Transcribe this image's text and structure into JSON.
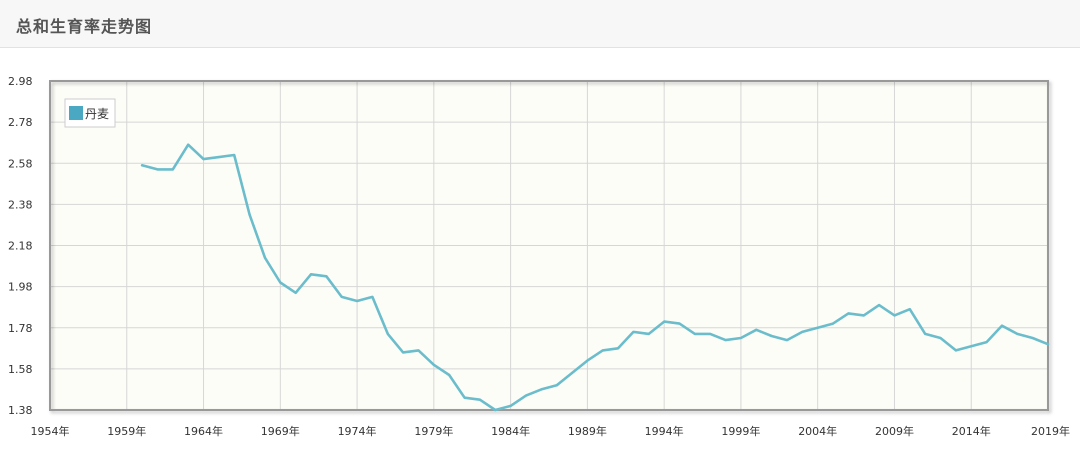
{
  "panel": {
    "title": "总和生育率走势图"
  },
  "colors": {
    "series": "#6bbdcc",
    "legend_swatch": "#4aa8c2",
    "grid": "#d6d6d6",
    "frame": "#999999",
    "plot_bg": "#fdfdf8"
  },
  "chart_data": {
    "type": "line",
    "title": "总和生育率走势图",
    "xlabel": "",
    "ylabel": "",
    "xlim": [
      1954,
      2019
    ],
    "ylim": [
      1.38,
      2.98
    ],
    "grid": true,
    "legend": "top-left",
    "x_ticks": [
      {
        "value": 1954,
        "label": "1954年"
      },
      {
        "value": 1959,
        "label": "1959年"
      },
      {
        "value": 1964,
        "label": "1964年"
      },
      {
        "value": 1969,
        "label": "1969年"
      },
      {
        "value": 1974,
        "label": "1974年"
      },
      {
        "value": 1979,
        "label": "1979年"
      },
      {
        "value": 1984,
        "label": "1984年"
      },
      {
        "value": 1989,
        "label": "1989年"
      },
      {
        "value": 1994,
        "label": "1994年"
      },
      {
        "value": 1999,
        "label": "1999年"
      },
      {
        "value": 2004,
        "label": "2004年"
      },
      {
        "value": 2009,
        "label": "2009年"
      },
      {
        "value": 2014,
        "label": "2014年"
      },
      {
        "value": 2019,
        "label": "2019年"
      }
    ],
    "y_ticks": [
      {
        "value": 2.98,
        "label": "2.98"
      },
      {
        "value": 2.78,
        "label": "2.78"
      },
      {
        "value": 2.58,
        "label": "2.58"
      },
      {
        "value": 2.38,
        "label": "2.38"
      },
      {
        "value": 2.18,
        "label": "2.18"
      },
      {
        "value": 1.98,
        "label": "1.98"
      },
      {
        "value": 1.78,
        "label": "1.78"
      },
      {
        "value": 1.58,
        "label": "1.58"
      },
      {
        "value": 1.38,
        "label": "1.38"
      }
    ],
    "series": [
      {
        "name": "丹麦",
        "x": [
          1960,
          1961,
          1962,
          1963,
          1964,
          1965,
          1966,
          1967,
          1968,
          1969,
          1970,
          1971,
          1972,
          1973,
          1974,
          1975,
          1976,
          1977,
          1978,
          1979,
          1980,
          1981,
          1982,
          1983,
          1984,
          1985,
          1986,
          1987,
          1988,
          1989,
          1990,
          1991,
          1992,
          1993,
          1994,
          1995,
          1996,
          1997,
          1998,
          1999,
          2000,
          2001,
          2002,
          2003,
          2004,
          2005,
          2006,
          2007,
          2008,
          2009,
          2010,
          2011,
          2012,
          2013,
          2014,
          2015,
          2016,
          2017,
          2018,
          2019
        ],
        "y": [
          2.57,
          2.55,
          2.55,
          2.67,
          2.6,
          2.61,
          2.62,
          2.33,
          2.12,
          2.0,
          1.95,
          2.04,
          2.03,
          1.93,
          1.91,
          1.93,
          1.75,
          1.66,
          1.67,
          1.6,
          1.55,
          1.44,
          1.43,
          1.38,
          1.4,
          1.45,
          1.48,
          1.5,
          1.56,
          1.62,
          1.67,
          1.68,
          1.76,
          1.75,
          1.81,
          1.8,
          1.75,
          1.75,
          1.72,
          1.73,
          1.77,
          1.74,
          1.72,
          1.76,
          1.78,
          1.8,
          1.85,
          1.84,
          1.89,
          1.84,
          1.87,
          1.75,
          1.73,
          1.67,
          1.69,
          1.71,
          1.79,
          1.75,
          1.73,
          1.7
        ]
      }
    ]
  }
}
